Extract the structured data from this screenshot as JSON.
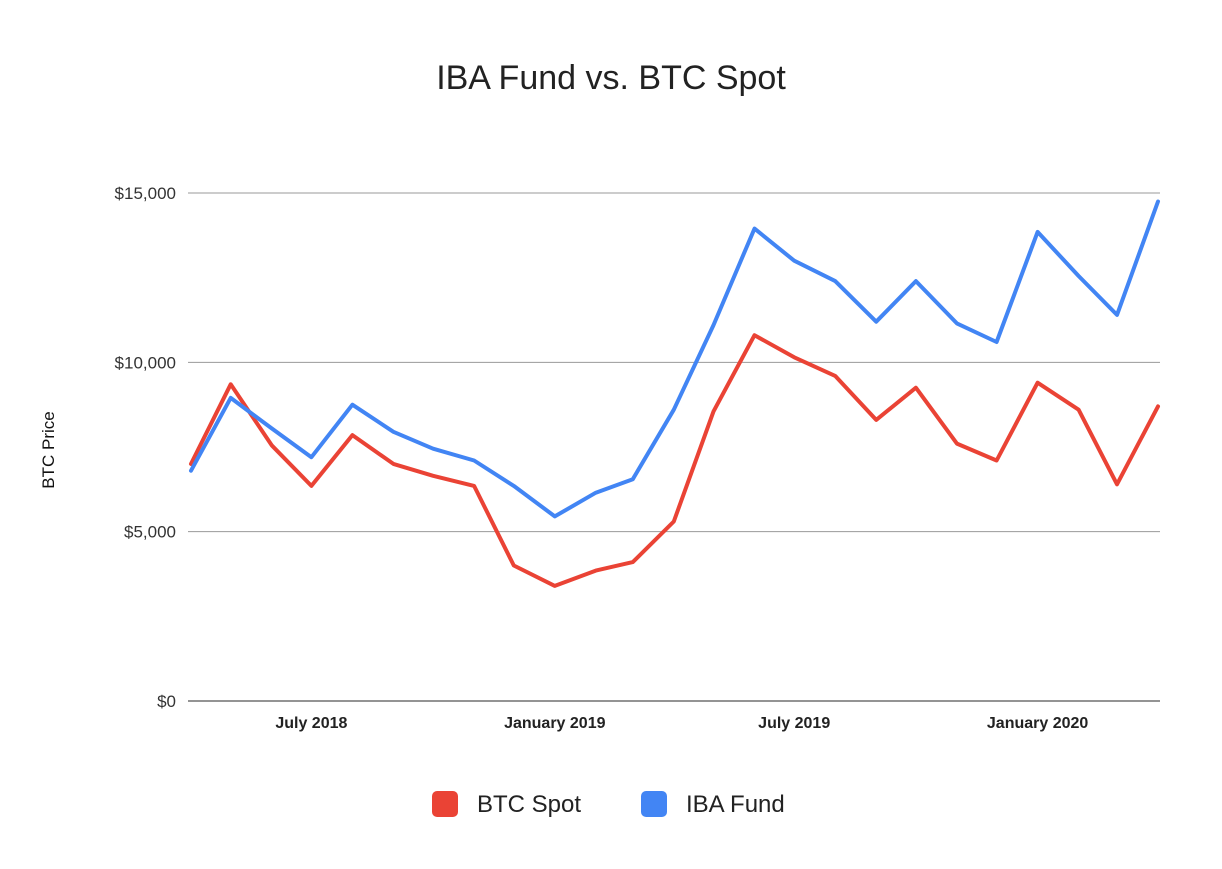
{
  "chart_data": {
    "type": "line",
    "title": "IBA Fund vs. BTC Spot",
    "xlabel": "",
    "ylabel": "BTC Price",
    "ylim": [
      0,
      15000
    ],
    "grid": true,
    "legend_position": "bottom",
    "x_tick_labels": [
      "July 2018",
      "January 2019",
      "July 2019",
      "January 2020"
    ],
    "y_tick_labels": [
      "$0",
      "$5,000",
      "$10,000",
      "$15,000"
    ],
    "y_ticks": [
      0,
      5000,
      10000,
      15000
    ],
    "x": [
      "2018-04-01",
      "2018-05-01",
      "2018-06-01",
      "2018-07-01",
      "2018-08-01",
      "2018-09-01",
      "2018-10-01",
      "2018-11-01",
      "2018-12-01",
      "2019-01-01",
      "2019-02-01",
      "2019-03-01",
      "2019-04-01",
      "2019-05-01",
      "2019-06-01",
      "2019-07-01",
      "2019-08-01",
      "2019-09-01",
      "2019-10-01",
      "2019-11-01",
      "2019-12-01",
      "2020-01-01",
      "2020-02-01",
      "2020-03-01",
      "2020-04-01"
    ],
    "series": [
      {
        "name": "BTC Spot",
        "color": "#ea4335",
        "values": [
          7000,
          9350,
          7550,
          6350,
          7850,
          7000,
          6650,
          6350,
          4000,
          3400,
          3850,
          4100,
          5300,
          8550,
          10800,
          10150,
          9600,
          8300,
          9250,
          7600,
          7100,
          9400,
          8600,
          6400,
          8700
        ]
      },
      {
        "name": "IBA Fund",
        "color": "#4285f4",
        "values": [
          6800,
          8950,
          8050,
          7200,
          8750,
          7950,
          7450,
          7100,
          6350,
          5450,
          6150,
          6550,
          8600,
          11100,
          13950,
          13000,
          12400,
          11200,
          12400,
          11150,
          10600,
          13850,
          12550,
          11400,
          14750
        ]
      }
    ]
  }
}
